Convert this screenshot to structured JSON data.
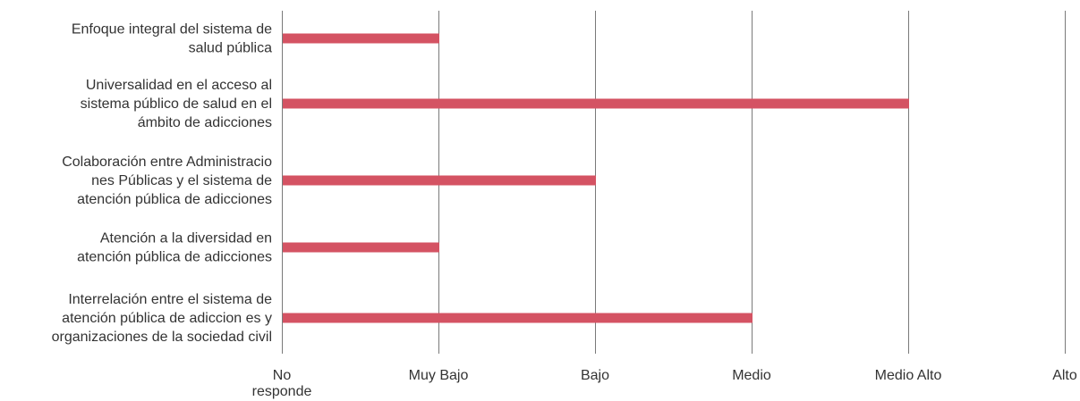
{
  "chart_data": {
    "type": "bar",
    "orientation": "horizontal",
    "categories": [
      [
        "Enfoque integral del sistema de",
        "salud pública"
      ],
      [
        "Universalidad en el acceso al",
        "sistema público de salud en el",
        "ámbito de adicciones"
      ],
      [
        "Colaboración entre Administracio",
        "nes Públicas y el sistema de",
        "atención pública de adicciones"
      ],
      [
        "Atención a la diversidad en",
        "atención pública de adicciones"
      ],
      [
        "Interrelación entre el sistema de",
        "atención pública de adiccion es y",
        "organizaciones de la sociedad civil"
      ]
    ],
    "values": [
      1,
      4,
      2,
      1,
      3
    ],
    "x_ticks": [
      [
        "No",
        "responde"
      ],
      [
        "Muy Bajo"
      ],
      [
        "Bajo"
      ],
      [
        "Medio"
      ],
      [
        "Medio Alto"
      ],
      [
        "Alto"
      ]
    ],
    "xlim": [
      0,
      5
    ],
    "grid": true,
    "bar_color": "#d45363",
    "grid_color": "#7a7a7a"
  }
}
